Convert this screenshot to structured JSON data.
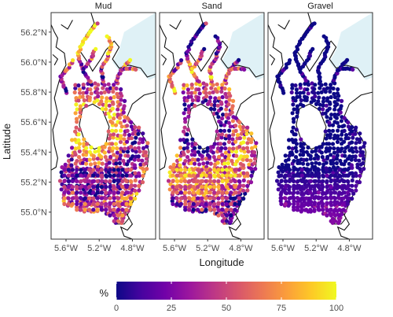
{
  "chart_data": {
    "type": "scatter",
    "xlabel": "Longitude",
    "ylabel": "Latitude",
    "panels": [
      {
        "title": "Mud",
        "variable": "Mud %"
      },
      {
        "title": "Sand",
        "variable": "Sand %"
      },
      {
        "title": "Gravel",
        "variable": "Gravel %"
      }
    ],
    "xlim": [
      -5.78,
      -4.52
    ],
    "ylim": [
      54.82,
      56.33
    ],
    "x_ticks": [
      {
        "value": -5.6,
        "label": "5.6°W"
      },
      {
        "value": -5.2,
        "label": "5.2°W"
      },
      {
        "value": -4.8,
        "label": "4.8°W"
      }
    ],
    "y_ticks": [
      {
        "value": 55.0,
        "label": "55.0°N"
      },
      {
        "value": 55.2,
        "label": "55.2°N"
      },
      {
        "value": 55.4,
        "label": "55.4°N"
      },
      {
        "value": 55.6,
        "label": "55.6°N"
      },
      {
        "value": 55.8,
        "label": "55.8°N"
      },
      {
        "value": 56.0,
        "label": "56.0°N"
      },
      {
        "value": 56.2,
        "label": "56.2°N"
      }
    ],
    "colorbar": {
      "title": "%",
      "range": [
        0,
        100
      ],
      "ticks": [
        {
          "value": 0,
          "label": "0"
        },
        {
          "value": 25,
          "label": "25"
        },
        {
          "value": 50,
          "label": "50"
        },
        {
          "value": 75,
          "label": "75"
        },
        {
          "value": 100,
          "label": "100"
        }
      ],
      "colormap": "plasma",
      "colors": [
        "#0d0887",
        "#46039f",
        "#7201a8",
        "#9c179e",
        "#bd3786",
        "#d8576b",
        "#ed7953",
        "#fb9f3a",
        "#fdca26",
        "#f0f921"
      ],
      "placement": "bottom"
    },
    "grid": false,
    "point_size": "small"
  }
}
